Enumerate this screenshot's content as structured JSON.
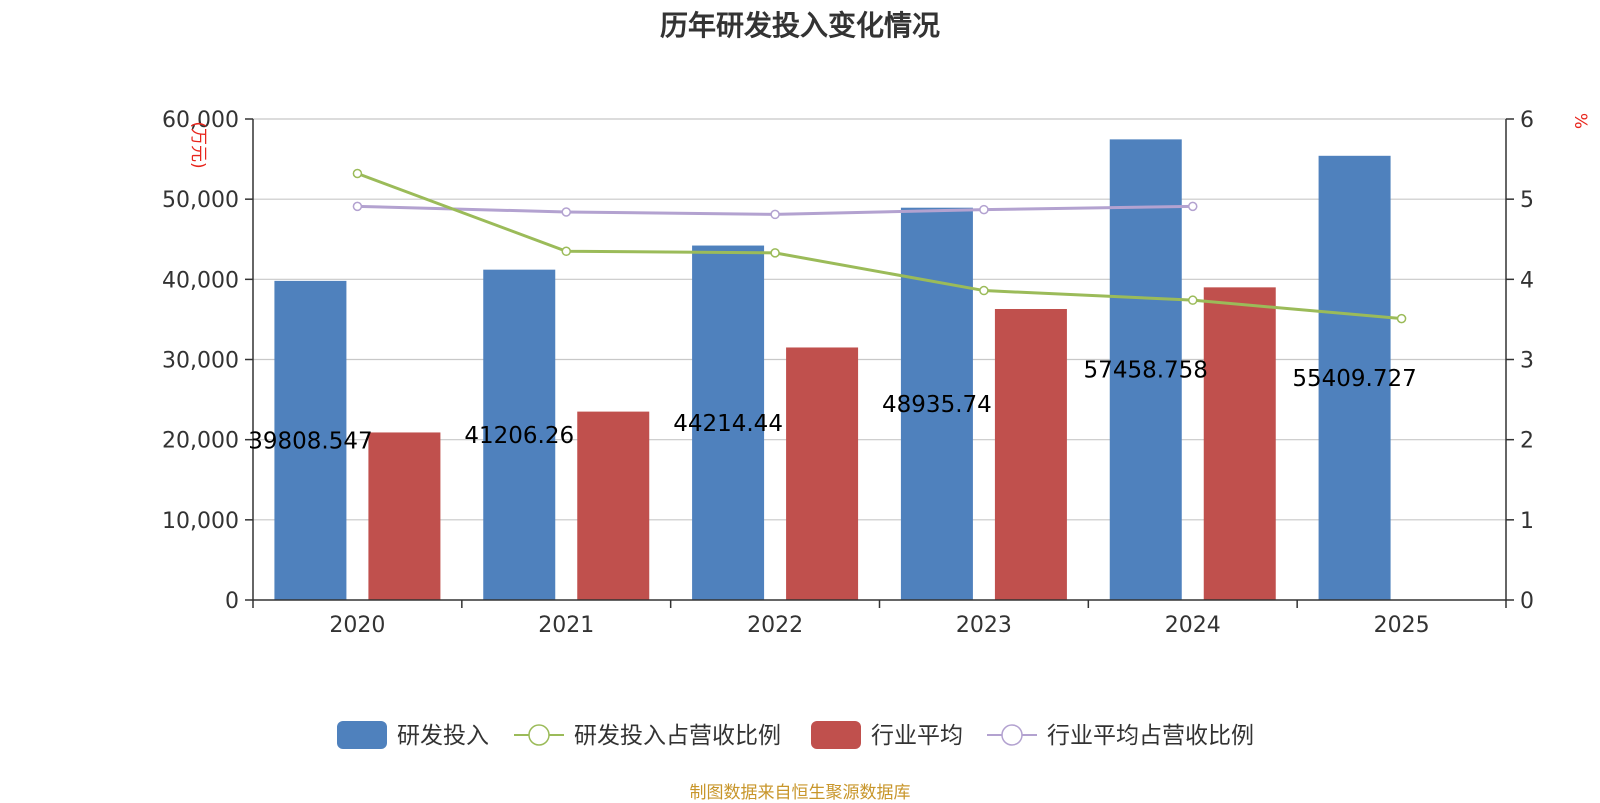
{
  "title": "历年研发投入变化情况",
  "source": "制图数据来自恒生聚源数据库",
  "colors": {
    "rd": "#4f81bd",
    "industry": "#c0504d",
    "rd_ratio": "#9bbb59",
    "industry_ratio": "#b3a2d0",
    "grid": "#c8c8c8",
    "axis": "#333333"
  },
  "chart_data": {
    "type": "bar",
    "title": "历年研发投入变化情况",
    "categories": [
      "2020",
      "2021",
      "2022",
      "2023",
      "2024",
      "2025"
    ],
    "y_left": {
      "unit": "万元",
      "range": [
        0,
        60000
      ],
      "ticks": [
        "0",
        "10,000",
        "20,000",
        "30,000",
        "40,000",
        "50,000",
        "60,000"
      ]
    },
    "y_right": {
      "unit": "%",
      "range": [
        0,
        6
      ],
      "ticks": [
        "0",
        "1",
        "2",
        "3",
        "4",
        "5",
        "6"
      ]
    },
    "grid": true,
    "legend_position": "bottom",
    "series": [
      {
        "name": "研发投入",
        "kind": "bar",
        "axis": "left",
        "values": [
          39808.547,
          41206.26,
          44214.44,
          48935.74,
          57458.758,
          55409.727
        ],
        "labels": [
          "39808.547",
          "41206.26",
          "44214.44",
          "48935.74",
          "57458.758",
          "55409.727"
        ]
      },
      {
        "name": "研发投入占营收比例",
        "kind": "line",
        "axis": "right",
        "values": [
          5.32,
          4.35,
          4.33,
          3.86,
          3.74,
          3.51
        ]
      },
      {
        "name": "行业平均",
        "kind": "bar",
        "axis": "left",
        "values": [
          20900,
          23500,
          31500,
          36300,
          39000,
          null
        ]
      },
      {
        "name": "行业平均占营收比例",
        "kind": "line",
        "axis": "right",
        "values": [
          4.91,
          4.84,
          4.81,
          4.87,
          4.91,
          null
        ]
      }
    ]
  }
}
